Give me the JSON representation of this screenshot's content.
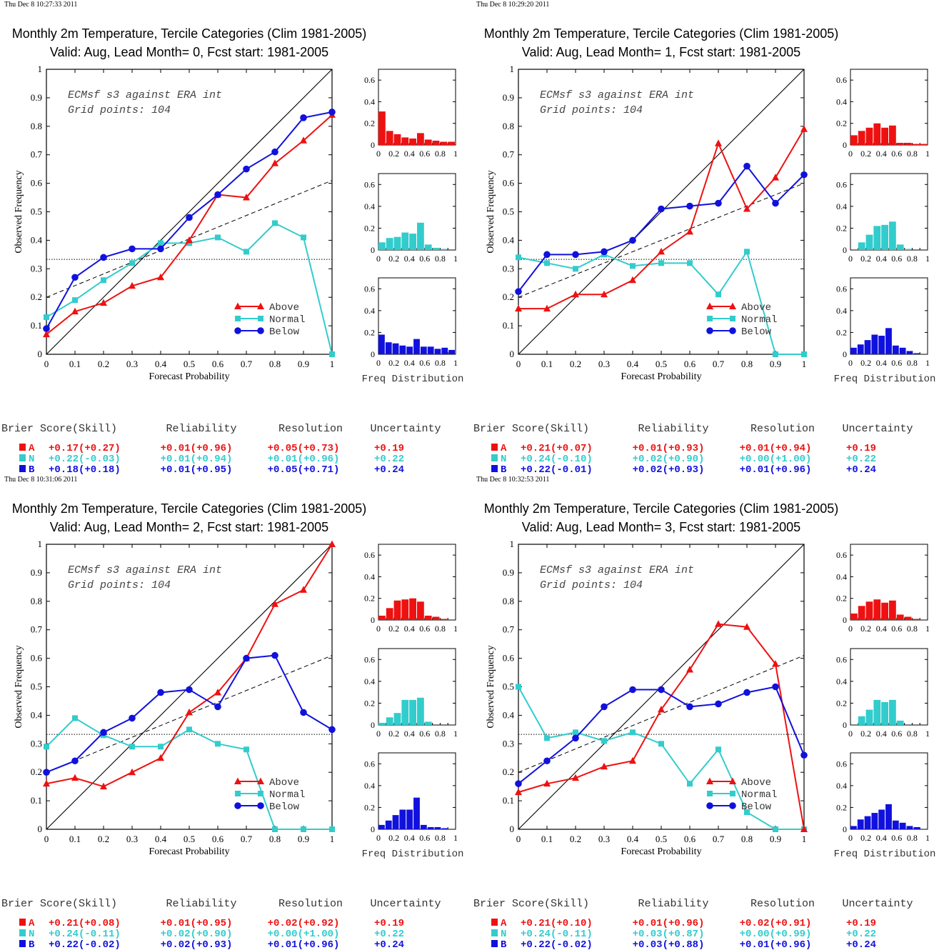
{
  "header": {
    "title_prefix": "Monthly 2m Temperature, Tercile Categories (Clim 1981-2005)",
    "annotation_line1": "ECMsf s3 against ERA int",
    "annotation_line2": "Grid points:  104",
    "xlabel": "Forecast Probability",
    "ylabel": "Observed Frequency",
    "hist_label": "Freq Distribution",
    "legend": [
      "Above",
      "Normal",
      "Below"
    ],
    "score_headers": [
      "Brier Score(Skill)",
      "Reliability",
      "Resolution",
      "Uncertainty"
    ],
    "category_letters": [
      "A",
      "N",
      "B"
    ]
  },
  "colors": {
    "above": "#ee1111",
    "normal": "#33cccc",
    "below": "#1111dd",
    "text": "#000000"
  },
  "panels": [
    {
      "timestamp": "Thu Dec  8 10:27:33 2011",
      "subtitle": "Valid: Aug, Lead Month= 0, Fcst start: 1981-2005",
      "scores": [
        [
          "+0.17(+0.27)",
          "+0.01(+0.96)",
          "+0.05(+0.73)",
          "+0.19"
        ],
        [
          "+0.22(-0.03)",
          "+0.01(+0.94)",
          "+0.01(+0.96)",
          "+0.22"
        ],
        [
          "+0.18(+0.18)",
          "+0.01(+0.95)",
          "+0.05(+0.71)",
          "+0.24"
        ]
      ]
    },
    {
      "timestamp": "Thu Dec  8 10:29:20 2011",
      "subtitle": "Valid: Aug, Lead Month= 1, Fcst start: 1981-2005",
      "scores": [
        [
          "+0.21(+0.07)",
          "+0.01(+0.93)",
          "+0.01(+0.94)",
          "+0.19"
        ],
        [
          "+0.24(-0.10)",
          "+0.02(+0.90)",
          "+0.00(+1.00)",
          "+0.22"
        ],
        [
          "+0.22(-0.01)",
          "+0.02(+0.93)",
          "+0.01(+0.96)",
          "+0.24"
        ]
      ]
    },
    {
      "timestamp": "Thu Dec  8 10:31:06 2011",
      "subtitle": "Valid: Aug, Lead Month= 2, Fcst start: 1981-2005",
      "scores": [
        [
          "+0.21(+0.08)",
          "+0.01(+0.95)",
          "+0.02(+0.92)",
          "+0.19"
        ],
        [
          "+0.24(-0.11)",
          "+0.02(+0.90)",
          "+0.00(+1.00)",
          "+0.22"
        ],
        [
          "+0.22(-0.02)",
          "+0.02(+0.93)",
          "+0.01(+0.96)",
          "+0.24"
        ]
      ]
    },
    {
      "timestamp": "Thu Dec  8 10:32:53 2011",
      "subtitle": "Valid: Aug, Lead Month= 3, Fcst start: 1981-2005",
      "scores": [
        [
          "+0.21(+0.10)",
          "+0.01(+0.96)",
          "+0.02(+0.91)",
          "+0.19"
        ],
        [
          "+0.24(-0.11)",
          "+0.03(+0.87)",
          "+0.00(+0.99)",
          "+0.22"
        ],
        [
          "+0.22(-0.02)",
          "+0.03(+0.88)",
          "+0.01(+0.96)",
          "+0.24"
        ]
      ]
    }
  ],
  "chart_data": [
    {
      "type": "line",
      "title": "Monthly 2m Temperature, Tercile Categories (Clim 1981-2005)",
      "subtitle": "Valid: Aug, Lead Month= 0, Fcst start: 1981-2005",
      "xlabel": "Forecast Probability",
      "ylabel": "Observed Frequency",
      "xlim": [
        0,
        1
      ],
      "ylim": [
        0,
        1
      ],
      "x": [
        0,
        0.1,
        0.2,
        0.3,
        0.4,
        0.5,
        0.6,
        0.7,
        0.8,
        0.9,
        1
      ],
      "series": [
        {
          "name": "Above",
          "values": [
            0.07,
            0.15,
            0.18,
            0.24,
            0.27,
            0.4,
            0.56,
            0.55,
            0.67,
            0.75,
            0.84
          ]
        },
        {
          "name": "Normal",
          "values": [
            0.13,
            0.19,
            0.26,
            0.32,
            0.39,
            0.39,
            0.41,
            0.36,
            0.46,
            0.41,
            0.0
          ]
        },
        {
          "name": "Below",
          "values": [
            0.09,
            0.27,
            0.34,
            0.37,
            0.37,
            0.48,
            0.56,
            0.65,
            0.71,
            0.83,
            0.85
          ]
        }
      ],
      "climatology": 0.333,
      "reliability_line": [
        0.2,
        0.61
      ],
      "histograms": {
        "xlim": [
          0,
          1
        ],
        "ylim": [
          0,
          0.7
        ],
        "Above": [
          0.31,
          0.13,
          0.1,
          0.07,
          0.06,
          0.11,
          0.05,
          0.04,
          0.03,
          0.03
        ],
        "Normal": [
          0.07,
          0.11,
          0.12,
          0.16,
          0.15,
          0.25,
          0.05,
          0.02,
          0.01,
          0.0
        ],
        "Below": [
          0.18,
          0.11,
          0.1,
          0.08,
          0.07,
          0.14,
          0.07,
          0.07,
          0.05,
          0.06,
          0.04
        ]
      }
    },
    {
      "type": "line",
      "title": "Monthly 2m Temperature, Tercile Categories (Clim 1981-2005)",
      "subtitle": "Valid: Aug, Lead Month= 1, Fcst start: 1981-2005",
      "xlabel": "Forecast Probability",
      "ylabel": "Observed Frequency",
      "xlim": [
        0,
        1
      ],
      "ylim": [
        0,
        1
      ],
      "x": [
        0,
        0.1,
        0.2,
        0.3,
        0.4,
        0.5,
        0.6,
        0.7,
        0.8,
        0.9,
        1
      ],
      "series": [
        {
          "name": "Above",
          "values": [
            0.16,
            0.16,
            0.21,
            0.21,
            0.26,
            0.36,
            0.43,
            0.74,
            0.51,
            0.62,
            0.79
          ]
        },
        {
          "name": "Normal",
          "values": [
            0.34,
            0.32,
            0.3,
            0.35,
            0.31,
            0.32,
            0.32,
            0.21,
            0.36,
            0.0,
            0.0
          ]
        },
        {
          "name": "Below",
          "values": [
            0.22,
            0.35,
            0.35,
            0.36,
            0.4,
            0.51,
            0.52,
            0.53,
            0.66,
            0.53,
            0.63
          ]
        }
      ],
      "climatology": 0.333,
      "reliability_line": [
        0.2,
        0.6
      ],
      "histograms": {
        "xlim": [
          0,
          1
        ],
        "ylim": [
          0,
          0.7
        ],
        "Above": [
          0.09,
          0.13,
          0.16,
          0.2,
          0.16,
          0.18,
          0.02,
          0.02,
          0.01,
          0.01
        ],
        "Normal": [
          0.0,
          0.07,
          0.14,
          0.22,
          0.23,
          0.26,
          0.05,
          0.01,
          0.0,
          0.0
        ],
        "Below": [
          0.06,
          0.09,
          0.13,
          0.18,
          0.17,
          0.24,
          0.08,
          0.06,
          0.03,
          0.01,
          0.0
        ]
      }
    },
    {
      "type": "line",
      "title": "Monthly 2m Temperature, Tercile Categories (Clim 1981-2005)",
      "subtitle": "Valid: Aug, Lead Month= 2, Fcst start: 1981-2005",
      "xlabel": "Forecast Probability",
      "ylabel": "Observed Frequency",
      "xlim": [
        0,
        1
      ],
      "ylim": [
        0,
        1
      ],
      "x": [
        0,
        0.1,
        0.2,
        0.3,
        0.4,
        0.5,
        0.6,
        0.7,
        0.8,
        0.9,
        1
      ],
      "series": [
        {
          "name": "Above",
          "values": [
            0.16,
            0.18,
            0.15,
            0.2,
            0.25,
            0.41,
            0.48,
            0.6,
            0.79,
            0.84,
            1.0
          ]
        },
        {
          "name": "Normal",
          "values": [
            0.29,
            0.39,
            0.33,
            0.29,
            0.29,
            0.35,
            0.3,
            0.28,
            0.0,
            0.0,
            0.0
          ]
        },
        {
          "name": "Below",
          "values": [
            0.2,
            0.24,
            0.34,
            0.39,
            0.48,
            0.49,
            0.43,
            0.6,
            0.61,
            0.41,
            0.35
          ]
        }
      ],
      "climatology": 0.333,
      "reliability_line": [
        0.2,
        0.61
      ],
      "histograms": {
        "xlim": [
          0,
          1
        ],
        "ylim": [
          0,
          0.7
        ],
        "Above": [
          0.04,
          0.11,
          0.18,
          0.19,
          0.2,
          0.17,
          0.04,
          0.03,
          0.01,
          0.0
        ],
        "Normal": [
          0.02,
          0.07,
          0.11,
          0.23,
          0.23,
          0.25,
          0.03,
          0.0,
          0.0,
          0.0
        ],
        "Below": [
          0.04,
          0.08,
          0.13,
          0.18,
          0.18,
          0.29,
          0.04,
          0.02,
          0.02,
          0.01,
          0.0
        ]
      }
    },
    {
      "type": "line",
      "title": "Monthly 2m Temperature, Tercile Categories (Clim 1981-2005)",
      "subtitle": "Valid: Aug, Lead Month= 3, Fcst start: 1981-2005",
      "xlabel": "Forecast Probability",
      "ylabel": "Observed Frequency",
      "xlim": [
        0,
        1
      ],
      "ylim": [
        0,
        1
      ],
      "x": [
        0,
        0.1,
        0.2,
        0.3,
        0.4,
        0.5,
        0.6,
        0.7,
        0.8,
        0.9,
        1
      ],
      "series": [
        {
          "name": "Above",
          "values": [
            0.13,
            0.16,
            0.18,
            0.22,
            0.24,
            0.42,
            0.56,
            0.72,
            0.71,
            0.58,
            0.0
          ]
        },
        {
          "name": "Normal",
          "values": [
            0.5,
            0.32,
            0.34,
            0.31,
            0.34,
            0.3,
            0.16,
            0.28,
            0.06,
            0.0,
            0.0
          ]
        },
        {
          "name": "Below",
          "values": [
            0.16,
            0.24,
            0.32,
            0.43,
            0.49,
            0.49,
            0.43,
            0.44,
            0.48,
            0.5,
            0.26
          ]
        }
      ],
      "climatology": 0.333,
      "reliability_line": [
        0.2,
        0.61
      ],
      "histograms": {
        "xlim": [
          0,
          1
        ],
        "ylim": [
          0,
          0.7
        ],
        "Above": [
          0.06,
          0.13,
          0.17,
          0.19,
          0.16,
          0.18,
          0.05,
          0.03,
          0.01,
          0.0
        ],
        "Normal": [
          0.0,
          0.08,
          0.14,
          0.23,
          0.21,
          0.23,
          0.04,
          0.0,
          0.0,
          0.0
        ],
        "Below": [
          0.03,
          0.09,
          0.12,
          0.15,
          0.18,
          0.23,
          0.08,
          0.06,
          0.03,
          0.02,
          0.0
        ]
      }
    }
  ]
}
